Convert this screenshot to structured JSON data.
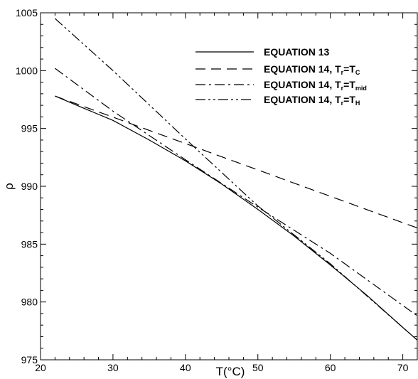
{
  "chart_data": {
    "type": "line",
    "xlabel": "T(°C)",
    "ylabel": "ρ",
    "xlim": [
      20,
      72
    ],
    "ylim": [
      975,
      1005
    ],
    "x_ticks": [
      20,
      30,
      40,
      50,
      60,
      70
    ],
    "y_ticks": [
      975,
      980,
      985,
      990,
      995,
      1000,
      1005
    ],
    "grid": false,
    "legend_position": "top-right",
    "series": [
      {
        "name": "EQUATION 13",
        "legend_main": "EQUATION 13",
        "legend_sub": "",
        "legend_tail": "",
        "legend_sub2": "",
        "dash": "solid",
        "x": [
          22,
          25,
          30,
          35,
          40,
          45,
          50,
          55,
          60,
          65,
          70,
          72
        ],
        "y": [
          997.8,
          997.0,
          995.7,
          994.0,
          992.2,
          990.2,
          988.0,
          985.7,
          983.2,
          980.6,
          977.8,
          976.7
        ]
      },
      {
        "name": "EQUATION 14, Tr=TC",
        "legend_main": "EQUATION 14, T",
        "legend_sub": "r",
        "legend_tail": "=T",
        "legend_sub2": "C",
        "dash": "dashed",
        "x": [
          22,
          72
        ],
        "y": [
          997.8,
          986.4
        ]
      },
      {
        "name": "EQUATION 14, Tr=Tmid",
        "legend_main": "EQUATION 14, T",
        "legend_sub": "r",
        "legend_tail": "=T",
        "legend_sub2": "mid",
        "dash": "dashdot",
        "x": [
          22,
          30,
          40,
          50,
          60,
          72
        ],
        "y": [
          1000.2,
          996.5,
          992.3,
          988.2,
          984.2,
          978.8
        ]
      },
      {
        "name": "EQUATION 14, Tr=TH",
        "legend_main": "EQUATION 14, T",
        "legend_sub": "r",
        "legend_tail": "=T",
        "legend_sub2": "H",
        "dash": "dashdotdot",
        "x": [
          22,
          30,
          40,
          50,
          60,
          72
        ],
        "y": [
          1004.5,
          1000.0,
          994.1,
          988.3,
          983.3,
          976.7
        ]
      }
    ]
  }
}
